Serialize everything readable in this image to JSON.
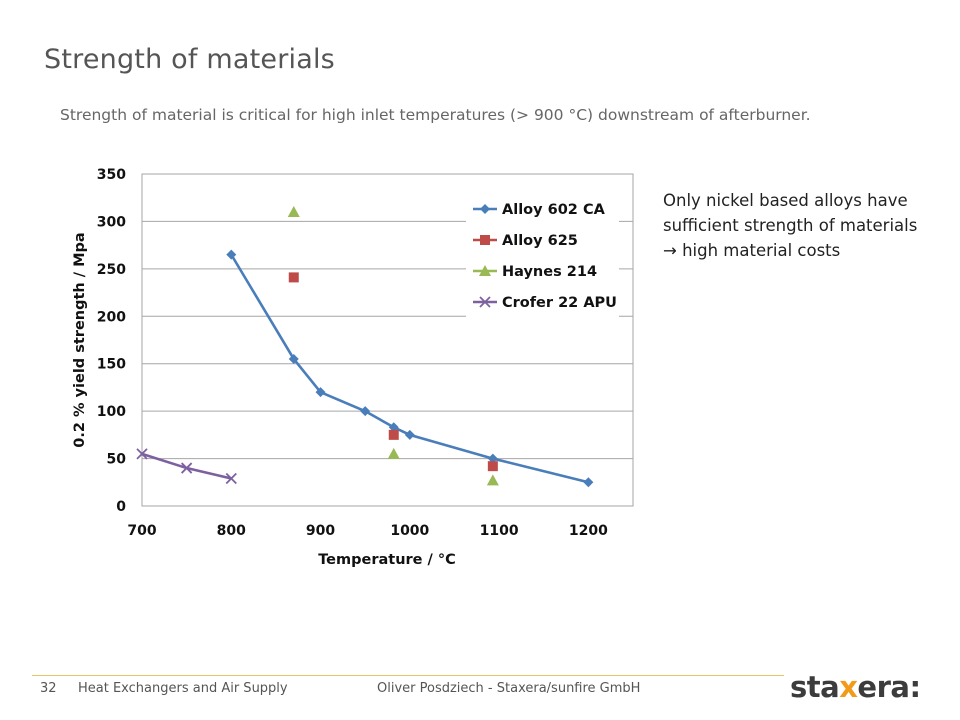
{
  "slide": {
    "title": "Strength of materials",
    "subtitle": "Strength of material is critical for high inlet temperatures (> 900 °C) downstream of afterburner.",
    "note_before_arrow": "Only nickel based alloys have sufficient strength of materials ",
    "note_arrow": "→",
    "note_after_arrow": " high material costs"
  },
  "footer": {
    "page_number": "32",
    "topic": "Heat Exchangers and Air Supply",
    "author": "Oliver Posdziech - Staxera/sunfire GmbH",
    "logo_prefix": "sta",
    "logo_mark": "x",
    "logo_suffix": "era:"
  },
  "colors": {
    "accent_line": "#e8c66a",
    "logo_orange": "#f29a1a"
  },
  "chart_data": {
    "type": "line",
    "xlabel": "Temperature / °C",
    "ylabel": "0.2 % yield strength / Mpa",
    "xlim": [
      700,
      1250
    ],
    "ylim": [
      0,
      350
    ],
    "x_ticks": [
      700,
      800,
      900,
      1000,
      1100,
      1200
    ],
    "y_ticks": [
      0,
      50,
      100,
      150,
      200,
      250,
      300,
      350
    ],
    "grid": "horizontal",
    "legend_position": "top-right",
    "series": [
      {
        "name": "Alloy 602 CA",
        "color": "#4a7ebb",
        "marker": "diamond",
        "line": true,
        "points": [
          [
            800,
            265
          ],
          [
            870,
            155
          ],
          [
            900,
            120
          ],
          [
            950,
            100
          ],
          [
            982,
            83
          ],
          [
            1000,
            75
          ],
          [
            1093,
            50
          ],
          [
            1200,
            25
          ]
        ]
      },
      {
        "name": "Alloy 625",
        "color": "#be4b48",
        "marker": "square",
        "line": false,
        "points": [
          [
            870,
            241
          ],
          [
            982,
            75
          ],
          [
            1093,
            42
          ]
        ]
      },
      {
        "name": "Haynes 214",
        "color": "#98b954",
        "marker": "triangle",
        "line": false,
        "points": [
          [
            870,
            310
          ],
          [
            982,
            55
          ],
          [
            1093,
            27
          ]
        ]
      },
      {
        "name": "Crofer 22 APU",
        "color": "#7d60a0",
        "marker": "x",
        "line": true,
        "points": [
          [
            700,
            55
          ],
          [
            750,
            40
          ],
          [
            800,
            29
          ]
        ]
      }
    ]
  }
}
